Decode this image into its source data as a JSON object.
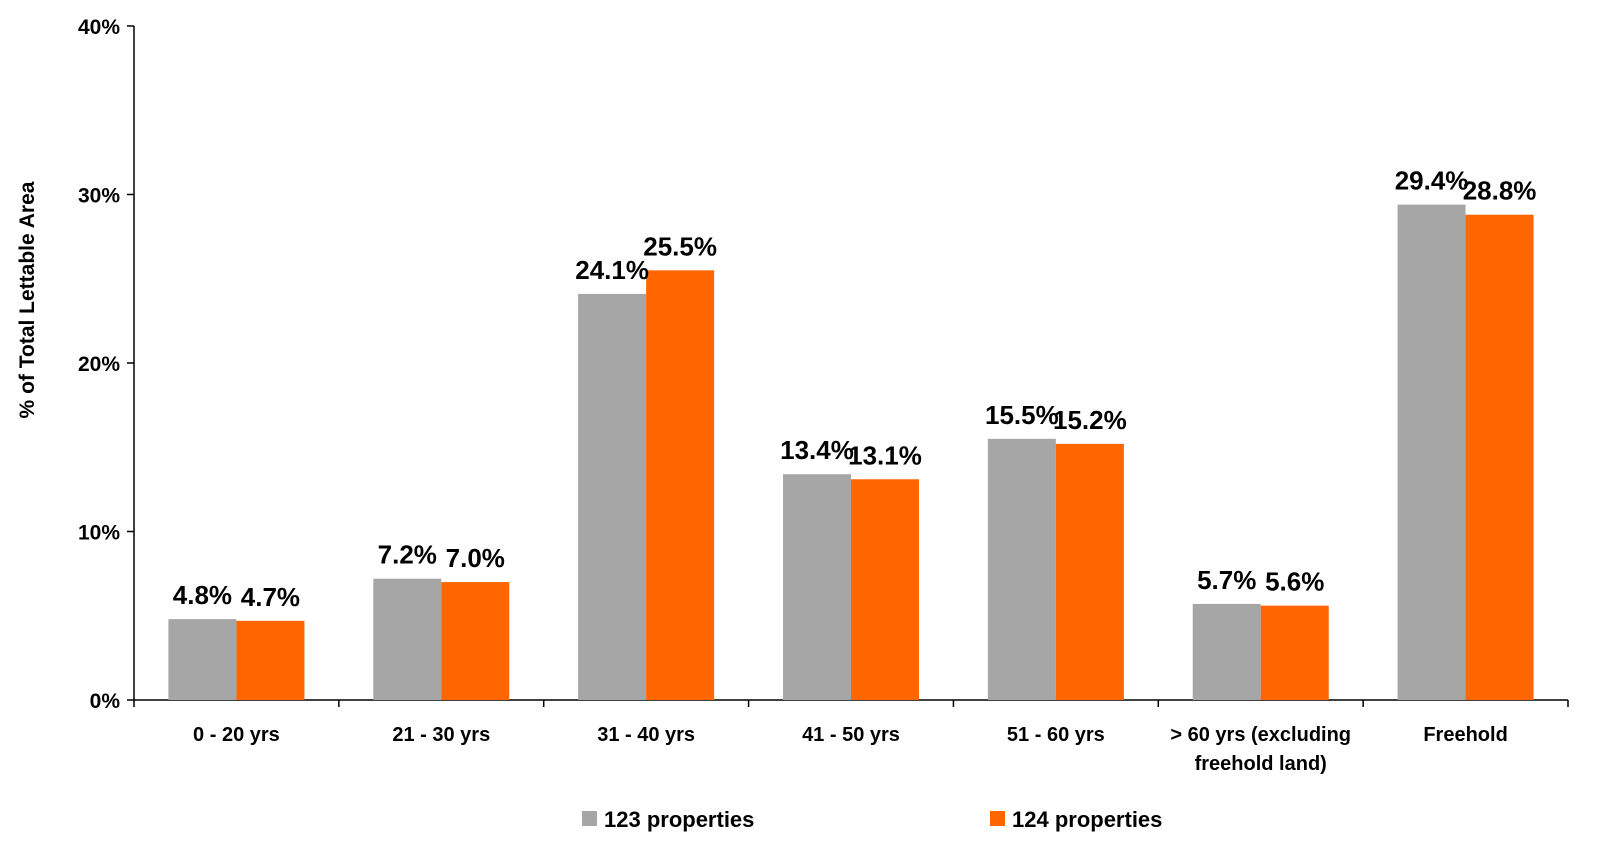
{
  "chart_data": {
    "type": "bar",
    "title": "",
    "xlabel": "",
    "ylabel": "% of Total Lettable Area",
    "ylim": [
      0,
      40
    ],
    "yticks": [
      "0%",
      "10%",
      "20%",
      "30%",
      "40%"
    ],
    "ytick_values": [
      0,
      10,
      20,
      30,
      40
    ],
    "grid": false,
    "legend_position": "bottom",
    "categories": [
      [
        "0 - 20 yrs"
      ],
      [
        "21 - 30 yrs"
      ],
      [
        "31 - 40 yrs"
      ],
      [
        "41 - 50 yrs"
      ],
      [
        "51 - 60 yrs"
      ],
      [
        "> 60 yrs (excluding",
        "freehold land)"
      ],
      [
        "Freehold"
      ]
    ],
    "series": [
      {
        "name": "123 properties",
        "color": "#a6a6a6",
        "values": [
          4.8,
          7.2,
          24.1,
          13.4,
          15.5,
          5.7,
          29.4
        ],
        "labels": [
          "4.8%",
          "7.2%",
          "24.1%",
          "13.4%",
          "15.5%",
          "5.7%",
          "29.4%"
        ]
      },
      {
        "name": "124 properties",
        "color": "#ff6600",
        "values": [
          4.7,
          7.0,
          25.5,
          13.1,
          15.2,
          5.6,
          28.8
        ],
        "labels": [
          "4.7%",
          "7.0%",
          "25.5%",
          "13.1%",
          "15.2%",
          "5.6%",
          "28.8%"
        ]
      }
    ]
  }
}
